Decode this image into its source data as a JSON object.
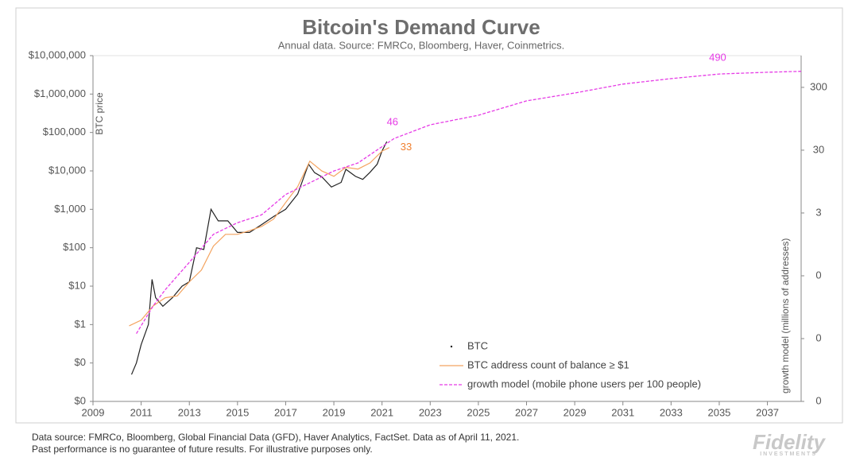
{
  "chart_data": {
    "type": "line",
    "title": "Bitcoin's Demand Curve",
    "subtitle": "Annual data.  Source: FMRCo, Bloomberg, Haver, Coinmetrics.",
    "ylabel": "BTC price",
    "y2label": "growth model (millions of addresses)",
    "xlim": [
      2009,
      2038.4
    ],
    "xticks": [
      2009,
      2011,
      2013,
      2015,
      2017,
      2019,
      2021,
      2023,
      2025,
      2027,
      2029,
      2031,
      2033,
      2035,
      2037
    ],
    "ylim": [
      0.01,
      10000000
    ],
    "ylog": true,
    "yticks": [
      {
        "value": 0.01,
        "label": "$0"
      },
      {
        "value": 0.1,
        "label": "$0"
      },
      {
        "value": 1,
        "label": "$1"
      },
      {
        "value": 10,
        "label": "$10"
      },
      {
        "value": 100,
        "label": "$100"
      },
      {
        "value": 1000,
        "label": "$1,000"
      },
      {
        "value": 10000,
        "label": "$10,000"
      },
      {
        "value": 100000,
        "label": "$100,000"
      },
      {
        "value": 1000000,
        "label": "$1,000,000"
      },
      {
        "value": 10000000,
        "label": "$10,000,000"
      }
    ],
    "y2lim": [
      0.003,
      960
    ],
    "y2log": true,
    "y2ticks": [
      {
        "value": 0.003,
        "label": "0"
      },
      {
        "value": 0.03,
        "label": "0"
      },
      {
        "value": 0.3,
        "label": "0"
      },
      3,
      30,
      300
    ],
    "grid": false,
    "legend": "lower center",
    "series": [
      {
        "name": "BTC",
        "color": "#222222",
        "style": "solid",
        "axis": "y",
        "x": [
          2010.6,
          2010.8,
          2011.0,
          2011.3,
          2011.45,
          2011.6,
          2011.9,
          2012.3,
          2012.7,
          2013.0,
          2013.3,
          2013.6,
          2013.9,
          2014.2,
          2014.6,
          2015.0,
          2015.5,
          2016.0,
          2016.5,
          2017.0,
          2017.5,
          2017.95,
          2018.2,
          2018.5,
          2018.9,
          2019.3,
          2019.5,
          2019.9,
          2020.2,
          2020.5,
          2020.8,
          2021.0,
          2021.2
        ],
        "values": [
          0.05,
          0.1,
          0.3,
          1,
          15,
          5,
          3,
          5,
          10,
          13,
          100,
          90,
          1000,
          500,
          500,
          250,
          250,
          400,
          650,
          1000,
          2500,
          15000,
          9000,
          7000,
          3800,
          5000,
          11000,
          7200,
          6000,
          9200,
          15000,
          33000,
          58000
        ]
      },
      {
        "name": "BTC address count of balance ≥ $1",
        "color": "#f4a460",
        "style": "solid",
        "axis": "y2",
        "x": [
          2010.5,
          2011.0,
          2011.5,
          2012.0,
          2012.5,
          2013.0,
          2013.5,
          2014.0,
          2014.5,
          2015.0,
          2015.5,
          2016.0,
          2016.5,
          2017.0,
          2017.5,
          2018.0,
          2018.5,
          2019.0,
          2019.5,
          2020.0,
          2020.5,
          2021.0,
          2021.3
        ],
        "values": [
          0.048,
          0.059,
          0.1,
          0.134,
          0.144,
          0.24,
          0.37,
          0.89,
          1.37,
          1.37,
          1.57,
          1.83,
          2.4,
          4.4,
          7.9,
          20,
          14,
          11.5,
          16,
          15,
          18.8,
          29,
          33
        ]
      },
      {
        "name": "growth model (mobile phone users per 100 people)",
        "color": "#e63be6",
        "style": "dashed",
        "axis": "y2",
        "x": [
          2010.8,
          2011.5,
          2012.0,
          2013.0,
          2014.0,
          2015.0,
          2016.0,
          2017.0,
          2018.0,
          2019.0,
          2020.0,
          2021.5,
          2023.0,
          2025.0,
          2027.0,
          2029.0,
          2031.0,
          2033.0,
          2035.0,
          2037.0,
          2038.4
        ],
        "values": [
          0.036,
          0.1,
          0.18,
          0.49,
          1.37,
          2.1,
          2.8,
          5.9,
          9.1,
          14,
          18.8,
          46,
          76,
          108,
          183,
          244,
          338,
          414,
          490,
          522,
          540
        ]
      }
    ],
    "annotations": [
      {
        "x": 2021.5,
        "value": 46,
        "axis": "y2",
        "color": "#e63be6"
      },
      {
        "x": 2021.3,
        "value": 33,
        "axis": "y2",
        "color": "#f08030"
      },
      {
        "x": 2035.0,
        "value": 490,
        "axis": "y2",
        "color": "#e63be6"
      }
    ]
  },
  "footer": {
    "notes": [
      "Data source: FMRCo, Bloomberg, Global Financial Data (GFD), Haver Analytics, FactSet. Data as of April 11, 2021.",
      "Past performance is no guarantee of future results. For illustrative purposes only."
    ],
    "logo": "Fidelity",
    "logo_sub": "INVESTMENTS"
  }
}
